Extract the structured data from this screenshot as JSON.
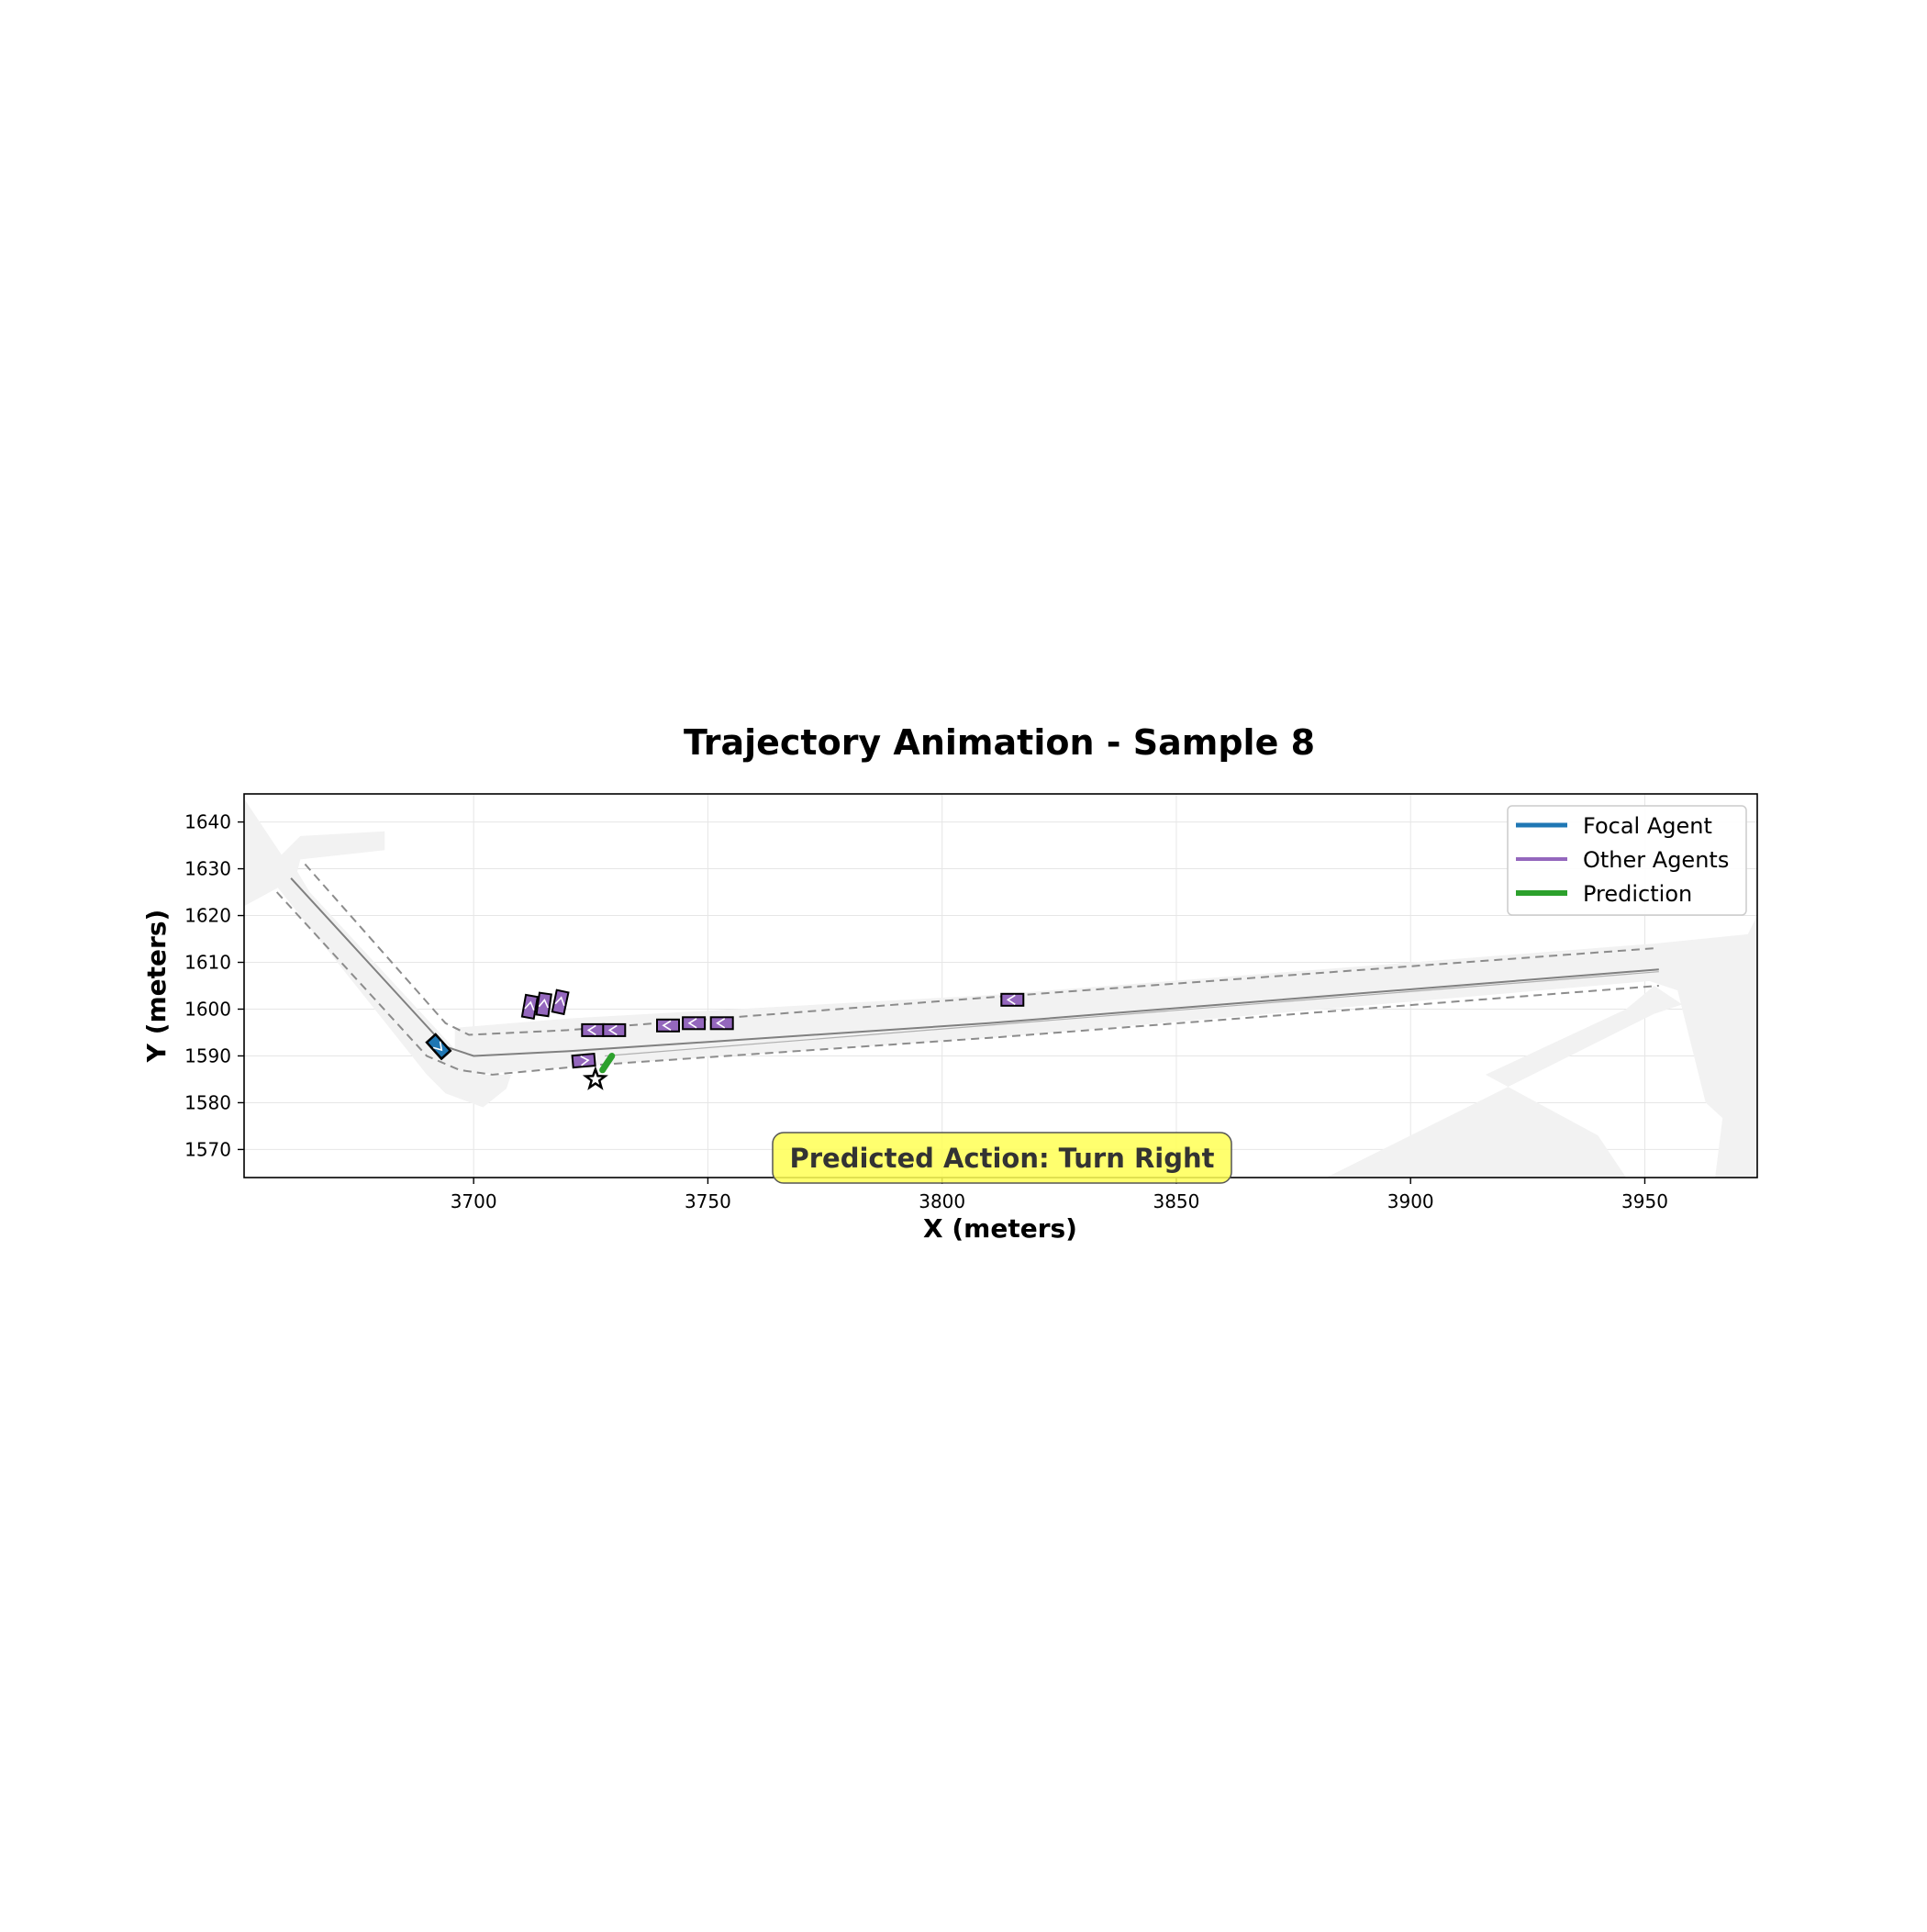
{
  "chart_data": {
    "type": "scatter",
    "title": "Trajectory Animation - Sample 8",
    "xlabel": "X (meters)",
    "ylabel": "Y (meters)",
    "xlim": [
      3651,
      3974
    ],
    "ylim": [
      1564,
      1646
    ],
    "xticks": [
      3700,
      3750,
      3800,
      3850,
      3900,
      3950
    ],
    "yticks": [
      1570,
      1580,
      1590,
      1600,
      1610,
      1620,
      1630,
      1640
    ],
    "grid": true,
    "legend": {
      "placement": "top-right",
      "entries": [
        {
          "label": "Focal Agent",
          "color": "#1f77b4"
        },
        {
          "label": "Other Agents",
          "color": "#9467bd"
        },
        {
          "label": "Prediction",
          "color": "#2ca02c"
        }
      ]
    },
    "annotation": {
      "text": "Predicted Action: Turn Right",
      "x": 3812,
      "y": 1568
    },
    "colors": {
      "focal": "#1f77b4",
      "other": "#9467bd",
      "prediction": "#2ca02c",
      "road": "#f2f2f2",
      "lane_center": "#808080",
      "lane_boundary": "#8c8c8c",
      "badge": "#ffff55"
    },
    "map": {
      "road_areas": [
        [
          [
            3651,
            1645
          ],
          [
            3651,
            1622
          ],
          [
            3662,
            1628
          ],
          [
            3663,
            1632
          ],
          [
            3681,
            1634
          ],
          [
            3681,
            1638
          ],
          [
            3663,
            1637
          ],
          [
            3659,
            1633
          ],
          [
            3651,
            1645
          ]
        ],
        [
          [
            3662,
            1630
          ],
          [
            3665,
            1625
          ],
          [
            3701,
            1586
          ],
          [
            3708,
            1586
          ],
          [
            3707,
            1583
          ],
          [
            3702,
            1579
          ],
          [
            3694,
            1582
          ],
          [
            3690,
            1586
          ],
          [
            3655,
            1630
          ]
        ],
        [
          [
            3696,
            1596
          ],
          [
            3720,
            1598
          ],
          [
            3810,
            1603
          ],
          [
            3952,
            1614
          ],
          [
            3972,
            1616
          ],
          [
            3974,
            1620
          ],
          [
            3974,
            1564
          ],
          [
            3965,
            1564
          ],
          [
            3967,
            1580
          ],
          [
            3968,
            1588
          ],
          [
            3974,
            1590
          ],
          [
            3974,
            1570
          ],
          [
            3963,
            1580
          ],
          [
            3957,
            1604
          ],
          [
            3951,
            1606
          ],
          [
            3812,
            1594
          ],
          [
            3725,
            1588
          ],
          [
            3700,
            1586
          ],
          [
            3696,
            1590
          ]
        ],
        [
          [
            3882,
            1564
          ],
          [
            3952,
            1599
          ],
          [
            3958,
            1601
          ],
          [
            3952,
            1605
          ],
          [
            3946,
            1600
          ],
          [
            3916,
            1586
          ],
          [
            3940,
            1573
          ],
          [
            3946,
            1564
          ]
        ]
      ],
      "lane_centers": [
        [
          [
            3661,
            1628
          ],
          [
            3694,
            1592
          ],
          [
            3700,
            1590
          ],
          [
            3720,
            1591
          ],
          [
            3810,
            1597
          ],
          [
            3953,
            1608.5
          ]
        ]
      ],
      "lane_boundaries": [
        [
          [
            3664,
            1631
          ],
          [
            3694,
            1597
          ],
          [
            3699,
            1594.5
          ],
          [
            3720,
            1595.5
          ],
          [
            3810,
            1602.5
          ],
          [
            3952,
            1613
          ]
        ],
        [
          [
            3658,
            1625
          ],
          [
            3690,
            1590
          ],
          [
            3697,
            1587
          ],
          [
            3704,
            1586
          ],
          [
            3725,
            1588
          ],
          [
            3812,
            1594
          ],
          [
            3953,
            1605
          ]
        ]
      ],
      "lane_divider": [
        [
          3728,
          1590
        ],
        [
          3953,
          1608
        ]
      ]
    },
    "focal_agent": {
      "x": 3692.5,
      "y": 1592,
      "heading_deg": -48
    },
    "other_agents": [
      {
        "x": 3712,
        "y": 1600.5,
        "heading_deg": 80
      },
      {
        "x": 3715,
        "y": 1601,
        "heading_deg": 82
      },
      {
        "x": 3718.5,
        "y": 1601.5,
        "heading_deg": 78
      },
      {
        "x": 3725.5,
        "y": 1595.5,
        "heading_deg": 180
      },
      {
        "x": 3730,
        "y": 1595.5,
        "heading_deg": 180
      },
      {
        "x": 3741.5,
        "y": 1596.5,
        "heading_deg": 180
      },
      {
        "x": 3747,
        "y": 1597,
        "heading_deg": 180
      },
      {
        "x": 3753,
        "y": 1597,
        "heading_deg": 180
      },
      {
        "x": 3815,
        "y": 1602,
        "heading_deg": 180
      },
      {
        "x": 3723.5,
        "y": 1589,
        "heading_deg": 5
      }
    ],
    "prediction": {
      "x": [
        3727.5,
        3728.5,
        3729.5
      ],
      "y": [
        1587,
        1588.5,
        1590
      ],
      "endpoint": {
        "x": 3726,
        "y": 1585
      }
    }
  }
}
